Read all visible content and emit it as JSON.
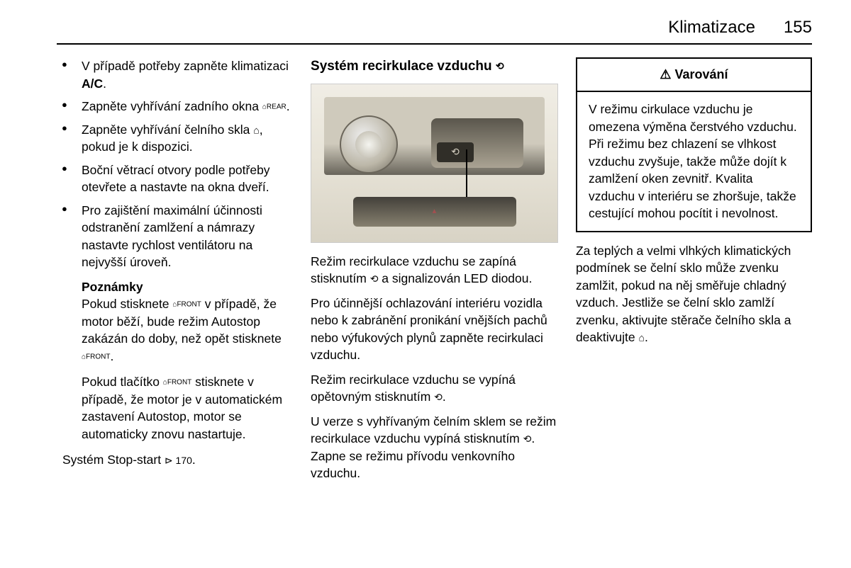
{
  "header": {
    "title": "Klimatizace",
    "page": "155"
  },
  "col1": {
    "bullets": [
      {
        "pre": "V případě potřeby zapněte klimatizaci ",
        "bold": "A/C",
        "post": "."
      },
      {
        "pre": "Zapněte vyhřívání zadního okna ",
        "icon": "⌂REAR",
        "post": "."
      },
      {
        "pre": "Zapněte vyhřívání čelního skla ",
        "icon": "⌂",
        "post": ", pokud je k dispozici."
      },
      {
        "pre": "Boční větrací otvory podle potřeby otevřete a nastavte na okna dveří."
      },
      {
        "pre": "Pro zajištění maximální účinnosti odstranění zamlžení a námrazy nastavte rychlost ventilátoru na nejvyšší úroveň."
      }
    ],
    "notesHeading": "Poznámky",
    "notes1_a": "Pokud stisknete ",
    "notes1_icon": "⌂FRONT",
    "notes1_b": " v případě, že motor běží, bude režim Autostop zakázán do doby, než opět stisknete ",
    "notes1_c": ".",
    "notes2_a": "Pokud tlačítko ",
    "notes2_icon": "⌂FRONT",
    "notes2_b": " stisknete v případě, že motor je v automatickém zastavení Autostop, motor se automaticky znovu nastartuje.",
    "stopstart_a": "Systém Stop-start ",
    "stopstart_ref": "⊳ 170",
    "stopstart_b": "."
  },
  "col2": {
    "heading_a": "Systém recirkulace vzduchu ",
    "heading_icon": "⟲",
    "p1_a": "Režim recirkulace vzduchu se zapíná stisknutím ",
    "p1_icon": "⟲",
    "p1_b": " a signalizován LED diodou.",
    "p2": "Pro účinnější ochlazování interiéru vozidla nebo k zabránění pronikání vnějších pachů nebo výfukových plynů zapněte recirkulaci vzduchu.",
    "p3_a": "Režim recirkulace vzduchu se vypíná opětovným stisknutím ",
    "p3_icon": "⟲",
    "p3_b": ".",
    "p4_a": "U verze s vyhřívaným čelním sklem se režim recirkulace vzduchu vypíná stisknutím ",
    "p4_icon": "⟲",
    "p4_b": ". Zapne se režimu přívodu venkovního vzduchu."
  },
  "col3": {
    "warningTitle": "⚠ Varování",
    "warningBody": "V režimu cirkulace vzduchu je omezena výměna čerstvého vzduchu. Při režimu bez chlazení se vlhkost vzduchu zvyšuje, takže může dojít k zamlžení oken zevnitř. Kvalita vzduchu v interiéru se zhoršuje, takže cestující mohou pocítit i nevolnost.",
    "after_a": "Za teplých a velmi vlhkých klimatických podmínek se čelní sklo může zvenku zamlžit, pokud na něj směřuje chladný vzduch. Jestliže se čelní sklo zamlží zvenku, aktivujte stěrače čelního skla a deaktivujte ",
    "after_icon": "⌂",
    "after_b": "."
  }
}
